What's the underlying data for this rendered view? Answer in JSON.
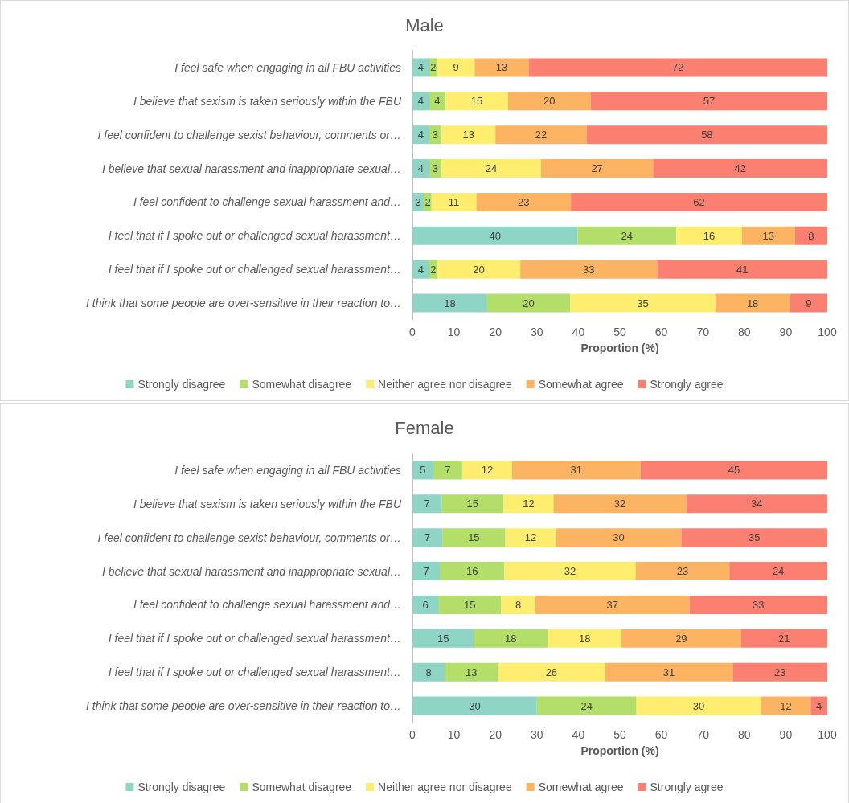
{
  "chart_data": [
    {
      "type": "bar",
      "title": "Male",
      "orientation": "horizontal",
      "stacked": true,
      "grid": false,
      "legend": "bottom",
      "xlabel": "Proportion (%)",
      "xlim": [
        0,
        100
      ],
      "xticks": [
        0,
        10,
        20,
        30,
        40,
        50,
        60,
        70,
        80,
        90,
        100
      ],
      "categories": [
        "I feel safe when engaging in all FBU activities",
        "I believe that sexism is taken seriously within the FBU",
        "I feel confident to challenge sexist behaviour, comments or…",
        "I believe that sexual harassment and inappropriate sexual…",
        "I feel confident to challenge sexual harassment and…",
        "I feel that if I spoke out or challenged sexual harassment…",
        "I feel that if I spoke out or challenged sexual harassment…",
        "I think that some people are over-sensitive in their reaction to…"
      ],
      "series": [
        {
          "name": "Strongly disagree",
          "color": "#8fd5c6",
          "values": [
            4,
            4,
            4,
            4,
            2.8,
            39.8,
            4,
            18
          ],
          "value_labels": [
            "4",
            "4",
            "4",
            "4",
            "3",
            "40",
            "4",
            "18"
          ]
        },
        {
          "name": "Somewhat disagree",
          "color": "#b3de69",
          "values": [
            2,
            4,
            3,
            3,
            1.8,
            23.8,
            2,
            20
          ],
          "value_labels": [
            "2",
            "4",
            "3",
            "3",
            "2",
            "24",
            "2",
            "20"
          ]
        },
        {
          "name": "Neither agree nor disagree",
          "color": "#ffed6f",
          "values": [
            9,
            15,
            13,
            24,
            10.8,
            15.8,
            20,
            35
          ],
          "value_labels": [
            "9",
            "15",
            "13",
            "24",
            "11",
            "16",
            "20",
            "35"
          ]
        },
        {
          "name": "Somewhat agree",
          "color": "#fdb462",
          "values": [
            13,
            20,
            22,
            27,
            22.8,
            12.8,
            33,
            18
          ],
          "value_labels": [
            "13",
            "20",
            "22",
            "27",
            "23",
            "13",
            "33",
            "18"
          ]
        },
        {
          "name": "Strongly agree",
          "color": "#fb8072",
          "values": [
            72,
            57,
            58,
            42,
            61.8,
            7.8,
            41,
            9
          ],
          "value_labels": [
            "72",
            "57",
            "58",
            "42",
            "62",
            "8",
            "41",
            "9"
          ]
        }
      ]
    },
    {
      "type": "bar",
      "title": "Female",
      "orientation": "horizontal",
      "stacked": true,
      "grid": false,
      "legend": "bottom",
      "xlabel": "Proportion (%)",
      "xlim": [
        0,
        100
      ],
      "xticks": [
        0,
        10,
        20,
        30,
        40,
        50,
        60,
        70,
        80,
        90,
        100
      ],
      "categories": [
        "I feel safe when engaging in all FBU activities",
        "I believe that sexism is taken seriously within the FBU",
        "I feel confident to challenge sexist behaviour, comments or…",
        "I believe that sexual harassment and inappropriate sexual…",
        "I feel confident to challenge sexual harassment and…",
        "I feel that if I spoke out or challenged sexual harassment…",
        "I feel that if I spoke out or challenged sexual harassment…",
        "I think that some people are over-sensitive in their reaction to…"
      ],
      "series": [
        {
          "name": "Strongly disagree",
          "color": "#8fd5c6",
          "values": [
            5,
            7,
            7.2,
            6.6,
            6.2,
            14.8,
            7.8,
            30
          ],
          "value_labels": [
            "5",
            "7",
            "7",
            "7",
            "6",
            "15",
            "8",
            "30"
          ]
        },
        {
          "name": "Somewhat disagree",
          "color": "#b3de69",
          "values": [
            7,
            15,
            15.2,
            15.6,
            15.2,
            17.8,
            12.8,
            24
          ],
          "value_labels": [
            "7",
            "15",
            "15",
            "16",
            "15",
            "18",
            "13",
            "24"
          ]
        },
        {
          "name": "Neither agree nor disagree",
          "color": "#ffed6f",
          "values": [
            12,
            12,
            12.2,
            31.6,
            8.2,
            17.8,
            25.8,
            30
          ],
          "value_labels": [
            "12",
            "12",
            "12",
            "32",
            "8",
            "18",
            "26",
            "30"
          ]
        },
        {
          "name": "Somewhat agree",
          "color": "#fdb462",
          "values": [
            31,
            32,
            30.2,
            22.6,
            37.2,
            28.8,
            30.8,
            12
          ],
          "value_labels": [
            "31",
            "32",
            "30",
            "23",
            "37",
            "29",
            "31",
            "12"
          ]
        },
        {
          "name": "Strongly agree",
          "color": "#fb8072",
          "values": [
            45,
            34,
            35.2,
            23.6,
            33.2,
            20.8,
            22.8,
            4
          ],
          "value_labels": [
            "45",
            "34",
            "35",
            "24",
            "33",
            "21",
            "23",
            "4"
          ]
        }
      ]
    }
  ]
}
